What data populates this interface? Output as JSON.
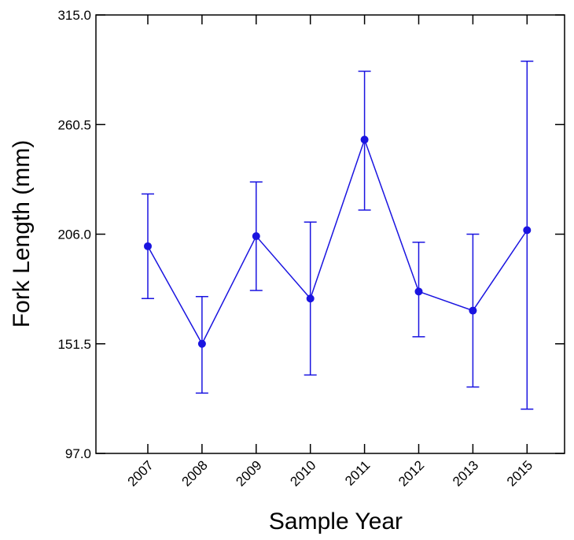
{
  "chart_data": {
    "type": "line",
    "title": "",
    "xlabel": "Sample Year",
    "ylabel": "Fork Length (mm)",
    "categories": [
      "2007",
      "2008",
      "2009",
      "2010",
      "2011",
      "2012",
      "2013",
      "2015"
    ],
    "ylim": [
      97.0,
      315.0
    ],
    "yticks": [
      "97.0",
      "151.5",
      "206.0",
      "260.5",
      "315.0"
    ],
    "series": [
      {
        "values": [
          200,
          151.5,
          205,
          174,
          253,
          177.5,
          168,
          208
        ],
        "err_low": [
          174,
          127,
          178,
          136,
          218,
          155,
          130,
          119
        ],
        "err_high": [
          226,
          175,
          232,
          212,
          287,
          202,
          206,
          292
        ]
      }
    ],
    "colors": {
      "series": "#1a14e0",
      "axis": "#000000"
    },
    "grid": false,
    "legend": "none"
  }
}
